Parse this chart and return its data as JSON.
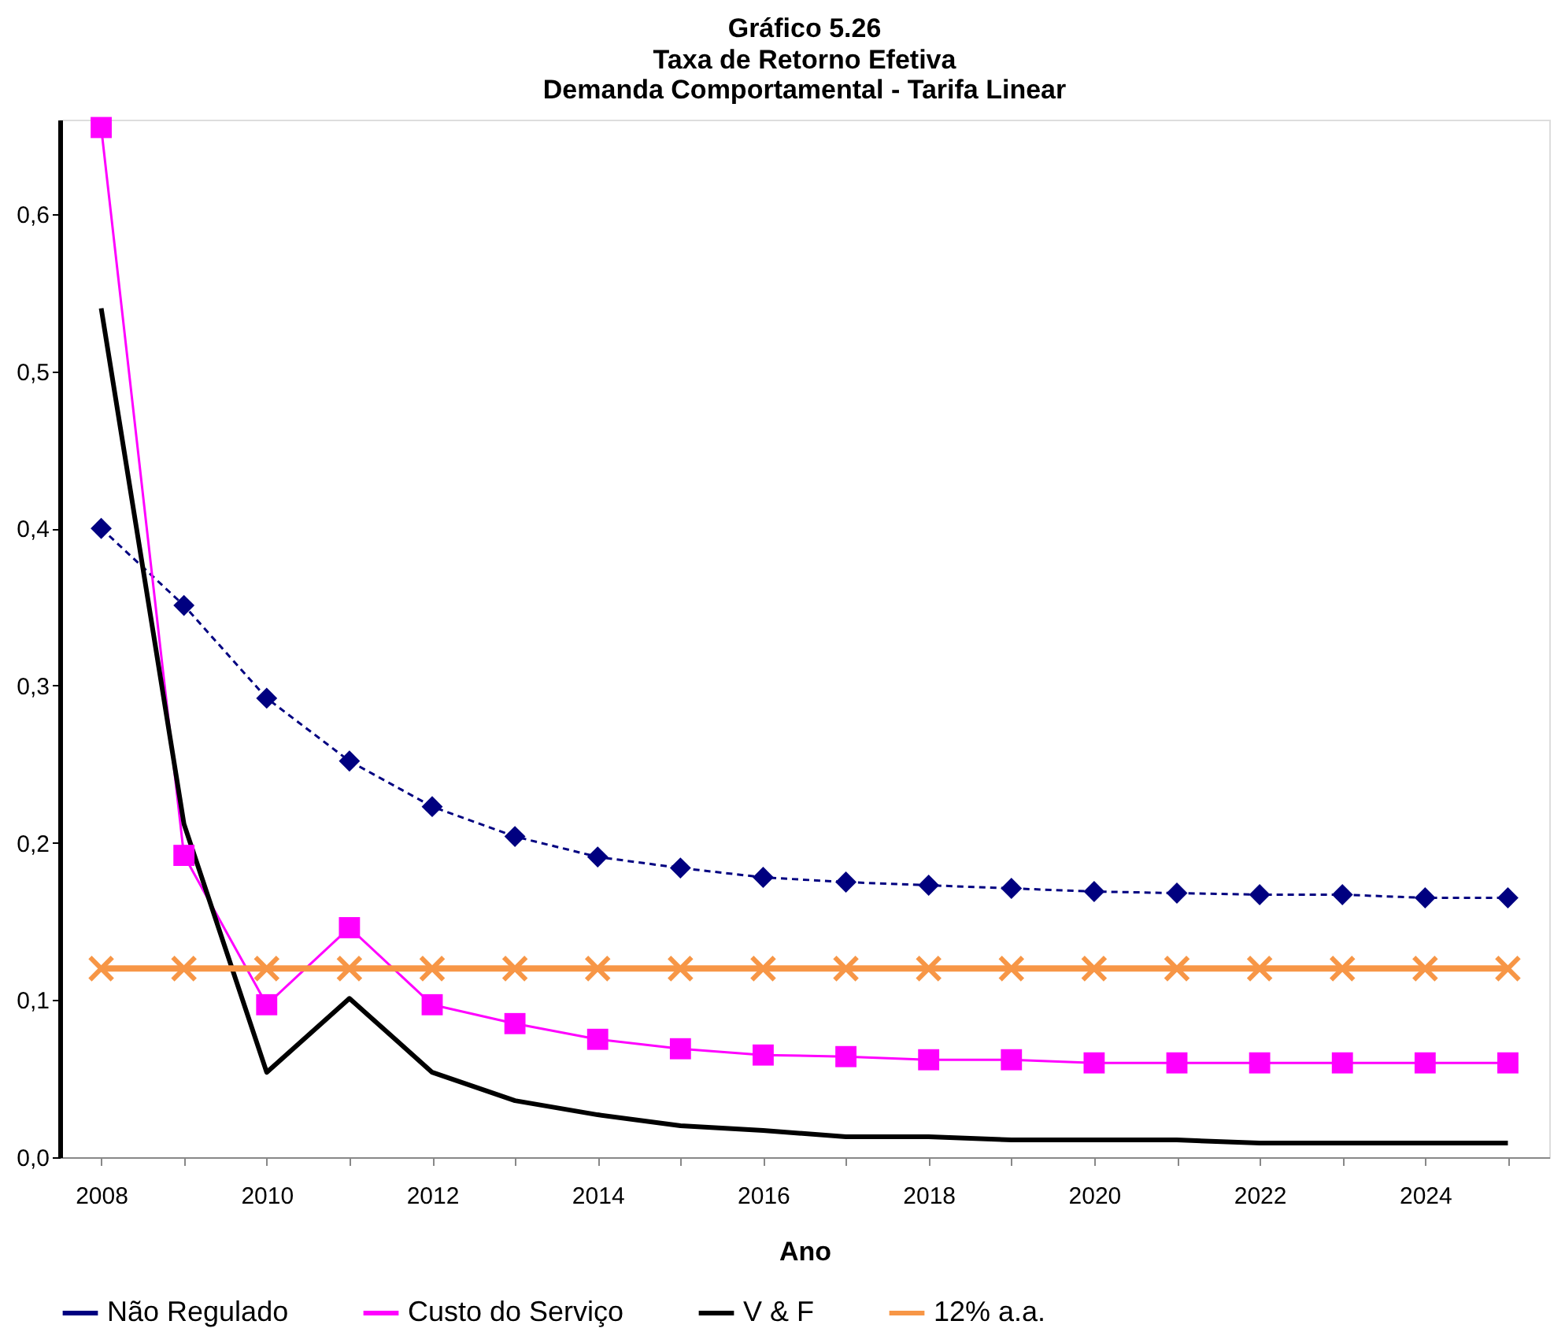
{
  "chart_data": {
    "type": "line",
    "title": "Gráfico 5.26",
    "subtitle": [
      "Taxa de Retorno Efetiva",
      "Demanda Comportamental - Tarifa Linear"
    ],
    "xlabel": "Ano",
    "categories": [
      "2008",
      null,
      "2010",
      null,
      "2012",
      null,
      "2014",
      null,
      "2016",
      null,
      "2018",
      null,
      "2020",
      null,
      "2022",
      null,
      "2024",
      null
    ],
    "series": [
      {
        "name": "Não Regulado",
        "color": "#000080",
        "marker": "diamond",
        "line_style": "dashed",
        "values": [
          0.4,
          0.351,
          0.292,
          0.252,
          0.223,
          0.204,
          0.191,
          0.184,
          0.178,
          0.175,
          0.173,
          0.171,
          0.169,
          0.168,
          0.167,
          0.167,
          0.165,
          0.165
        ]
      },
      {
        "name": "Custo do Serviço",
        "color": "#ff00ff",
        "marker": "square",
        "line_style": "solid",
        "values": [
          0.655,
          0.192,
          0.097,
          0.146,
          0.097,
          0.085,
          0.075,
          0.069,
          0.065,
          0.064,
          0.062,
          0.062,
          0.06,
          0.06,
          0.06,
          0.06,
          0.06,
          0.06
        ]
      },
      {
        "name": "V & F",
        "color": "#000000",
        "marker": "none",
        "line_style": "solid",
        "values": [
          0.54,
          0.212,
          0.054,
          0.101,
          0.054,
          0.036,
          0.027,
          0.02,
          0.017,
          0.013,
          0.013,
          0.011,
          0.011,
          0.011,
          0.009,
          0.009,
          0.009,
          0.009
        ]
      },
      {
        "name": "12% a.a.",
        "color": "#f79646",
        "marker": "cross",
        "line_style": "solid",
        "values": [
          0.12,
          0.12,
          0.12,
          0.12,
          0.12,
          0.12,
          0.12,
          0.12,
          0.12,
          0.12,
          0.12,
          0.12,
          0.12,
          0.12,
          0.12,
          0.12,
          0.12,
          0.12
        ]
      }
    ],
    "ylim": [
      0,
      0.66
    ],
    "yticks": [
      {
        "value": 0,
        "label": "0,0"
      },
      {
        "value": 0.1,
        "label": "0,1"
      },
      {
        "value": 0.2,
        "label": "0,2"
      },
      {
        "value": 0.3,
        "label": "0,3"
      },
      {
        "value": 0.4,
        "label": "0,4"
      },
      {
        "value": 0.5,
        "label": "0,5"
      },
      {
        "value": 0.6,
        "label": "0,6"
      }
    ],
    "grid": false,
    "legend": "bottom"
  }
}
